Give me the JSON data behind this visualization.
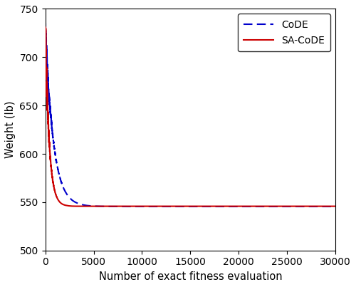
{
  "title": "",
  "xlabel": "Number of exact fitness evaluation",
  "ylabel": "Weight (lb)",
  "xlim": [
    0,
    30000
  ],
  "ylim": [
    500,
    750
  ],
  "xticks": [
    0,
    5000,
    10000,
    15000,
    20000,
    25000,
    30000
  ],
  "yticks": [
    500,
    550,
    600,
    650,
    700,
    750
  ],
  "code_color": "#0000CC",
  "sacode_color": "#CC0000",
  "code_start": 730,
  "sacode_start": 730,
  "code_final": 545.5,
  "sacode_final": 545.8,
  "code_converge_x": 12000,
  "sacode_converge_x": 3500,
  "legend_labels": [
    "CoDE",
    "SA-CoDE"
  ],
  "figsize": [
    5.0,
    4.03
  ],
  "dpi": 100
}
